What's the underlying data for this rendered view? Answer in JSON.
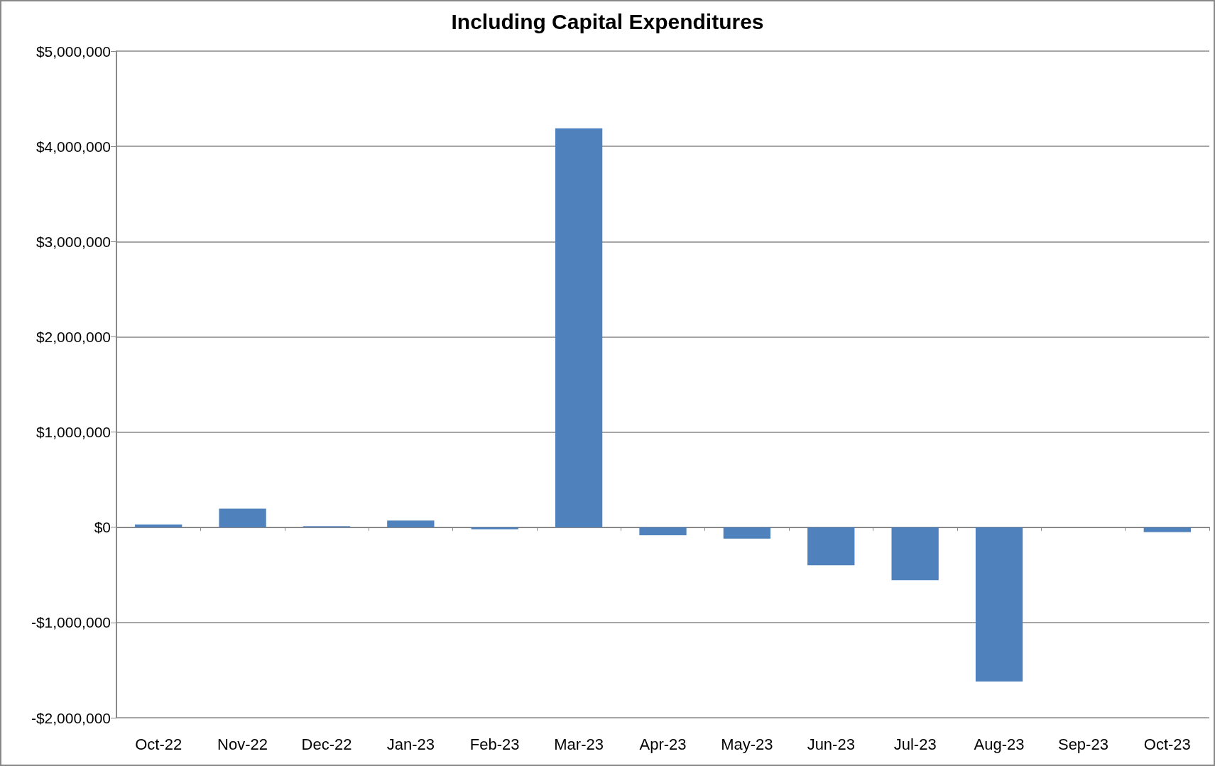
{
  "chart_data": {
    "type": "bar",
    "title": "Including Capital Expenditures",
    "categories": [
      "Oct-22",
      "Nov-22",
      "Dec-22",
      "Jan-23",
      "Feb-23",
      "Mar-23",
      "Apr-23",
      "May-23",
      "Jun-23",
      "Jul-23",
      "Aug-23",
      "Sep-23",
      "Oct-23"
    ],
    "values": [
      30000,
      195000,
      10000,
      70000,
      -20000,
      4190000,
      -85000,
      -120000,
      -400000,
      -555000,
      -1620000,
      0,
      -50000
    ],
    "color": "#4f81bd",
    "ylim": [
      -2000000,
      5000000
    ],
    "yticks": [
      {
        "value": -2000000,
        "label": "-$2,000,000"
      },
      {
        "value": -1000000,
        "label": "-$1,000,000"
      },
      {
        "value": 0,
        "label": "$0"
      },
      {
        "value": 1000000,
        "label": "$1,000,000"
      },
      {
        "value": 2000000,
        "label": "$2,000,000"
      },
      {
        "value": 3000000,
        "label": "$3,000,000"
      },
      {
        "value": 4000000,
        "label": "$4,000,000"
      },
      {
        "value": 5000000,
        "label": "$5,000,000"
      }
    ],
    "grid": "y"
  }
}
